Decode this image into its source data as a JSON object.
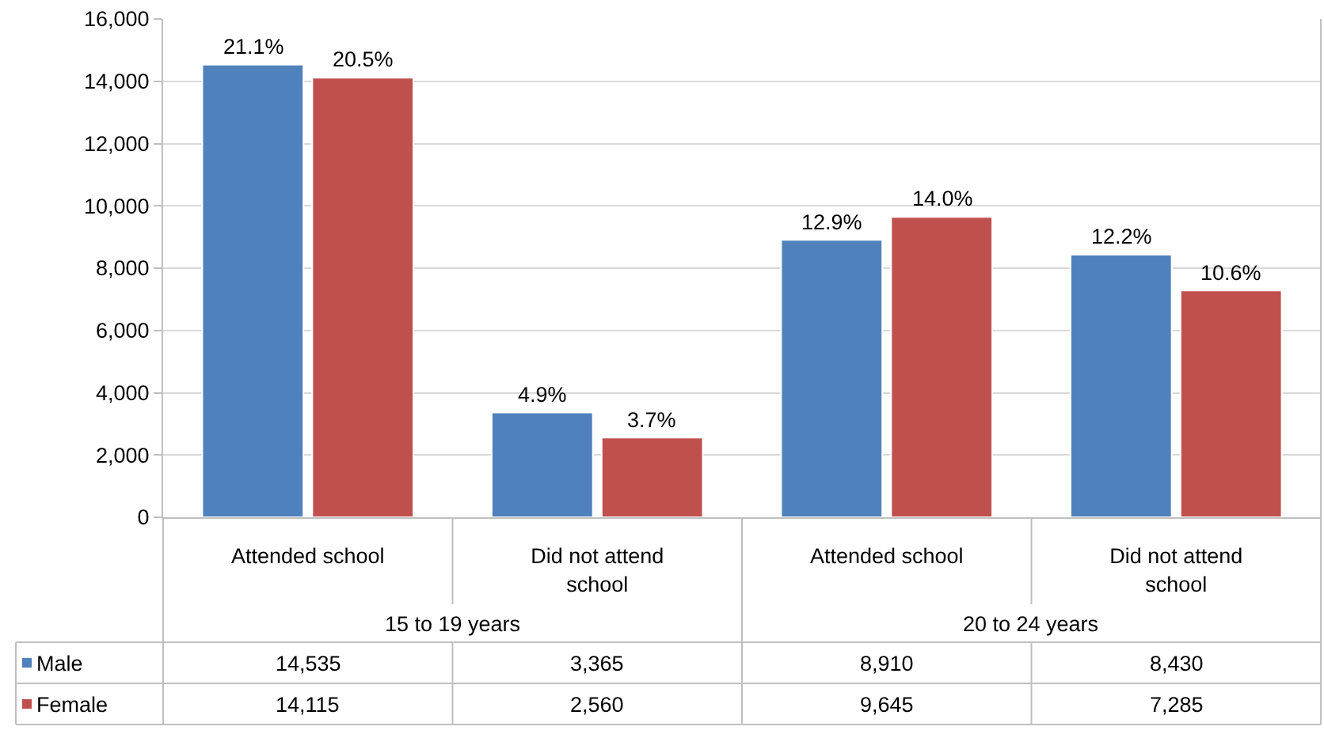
{
  "chart_data": {
    "type": "bar",
    "categories": [
      "Attended school",
      "Did not attend school",
      "Attended school",
      "Did not attend school"
    ],
    "series": [
      {
        "name": "Male",
        "color": "#4f81bd",
        "values": [
          14535,
          3365,
          8910,
          8430
        ],
        "value_labels": [
          "14,535",
          "3,365",
          "8,910",
          "8,430"
        ]
      },
      {
        "name": "Female",
        "color": "#c0504d",
        "values": [
          14115,
          2560,
          9645,
          7285
        ],
        "value_labels": [
          "14,115",
          "2,560",
          "9,645",
          "7,285"
        ]
      }
    ],
    "annotations": [
      "15 to 19 years",
      "20 to 24 years",
      "21.1%",
      "4.9%",
      "12.9%",
      "12.2%",
      "20.5%",
      "3.7%",
      "14.0%",
      "10.6%"
    ],
    "ylim": [
      0,
      16000
    ],
    "yticks": [
      {
        "value": 0,
        "label": "0"
      },
      {
        "value": 2000,
        "label": "2,000"
      },
      {
        "value": 4000,
        "label": "4,000"
      },
      {
        "value": 6000,
        "label": "6,000"
      },
      {
        "value": 8000,
        "label": "8,000"
      },
      {
        "value": 10000,
        "label": "10,000"
      },
      {
        "value": 12000,
        "label": "12,000"
      },
      {
        "value": 14000,
        "label": "14,000"
      },
      {
        "value": 16000,
        "label": "16,000"
      }
    ],
    "grid": "y",
    "legend": "bottom"
  }
}
